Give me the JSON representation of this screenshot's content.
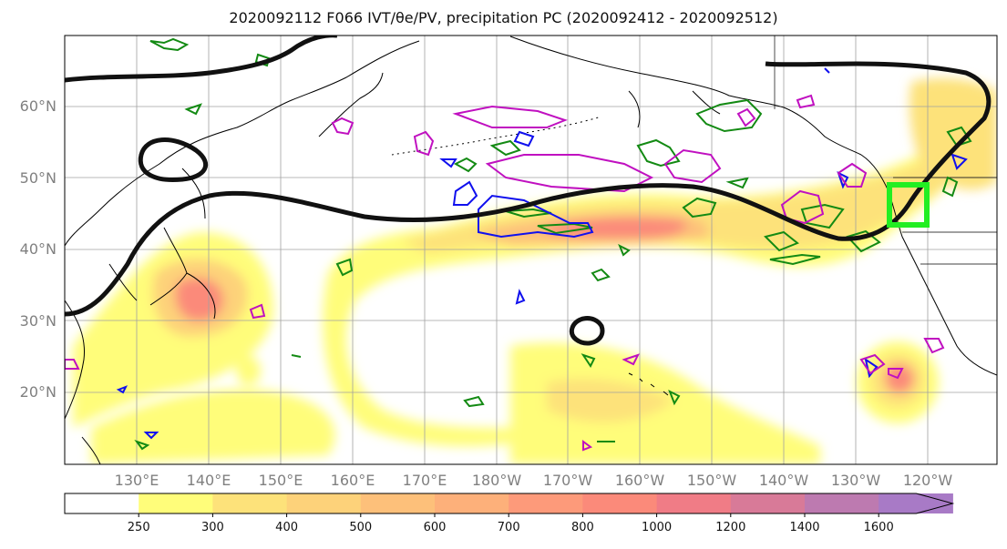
{
  "title": "2020092112 F066 IVT/θe/PV, precipitation PC (2020092412 - 2020092512)",
  "lat_labels": [
    "20°N",
    "30°N",
    "40°N",
    "50°N",
    "60°N"
  ],
  "lon_labels": [
    "130°E",
    "140°E",
    "150°E",
    "160°E",
    "170°E",
    "180°W",
    "170°W",
    "160°W",
    "150°W",
    "140°W",
    "130°W",
    "120°W"
  ],
  "colorbar": {
    "ticks": [
      "250",
      "300",
      "400",
      "500",
      "600",
      "700",
      "800",
      "1000",
      "1200",
      "1400",
      "1600"
    ],
    "colors": [
      "#ffffff",
      "#fffd7a",
      "#fde27a",
      "#fdd27a",
      "#fdc07a",
      "#fdb07a",
      "#fd9a7a",
      "#fb8a7a",
      "#f07c86",
      "#d87a98",
      "#bd7ab0",
      "#a87ac6"
    ],
    "extend": "max"
  },
  "colors": {
    "pv_contour": "#111111",
    "theta_e_green": "#138a13",
    "blue_contour": "#1010ee",
    "magenta_contour": "#c010c0",
    "target_box": "#22ee22",
    "coast": "#000000",
    "grid": "#a0a0a0"
  }
}
